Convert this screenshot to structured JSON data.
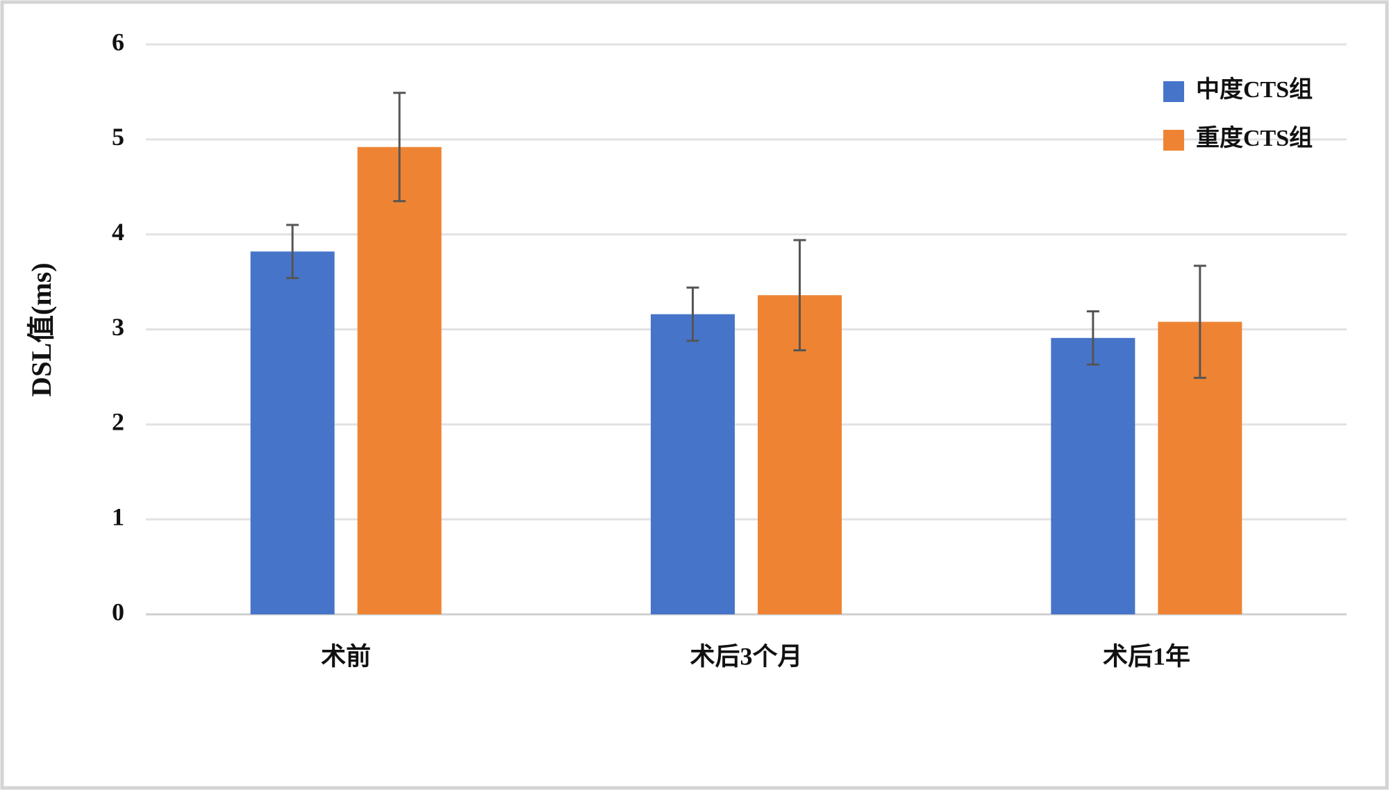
{
  "chart_data": {
    "type": "bar",
    "y_label": "DSL值(ms)",
    "categories": [
      "术前",
      "术后3个月",
      "术后1年"
    ],
    "series": [
      {
        "name": "中度CTS组",
        "color": "#4674c9",
        "values": [
          3.82,
          3.16,
          2.91
        ],
        "errors": [
          0.28,
          0.28,
          0.28
        ]
      },
      {
        "name": "重度CTS组",
        "color": "#ee8433",
        "values": [
          4.92,
          3.36,
          3.08
        ],
        "errors": [
          0.57,
          0.58,
          0.59
        ]
      }
    ],
    "ylim": [
      0,
      6
    ],
    "yticks": [
      0,
      1,
      2,
      3,
      4,
      5,
      6
    ],
    "grid": true,
    "legend": "top-right"
  }
}
